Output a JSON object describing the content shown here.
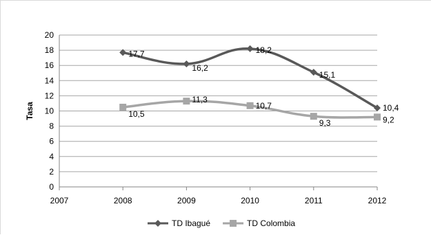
{
  "chart_data": {
    "type": "line",
    "x": [
      2007,
      2008,
      2009,
      2010,
      2011,
      2012
    ],
    "xlim": [
      2007,
      2012
    ],
    "ylim": [
      0,
      20
    ],
    "yticks": [
      0,
      2,
      4,
      6,
      8,
      10,
      12,
      14,
      16,
      18,
      20
    ],
    "ylabel": "Tasa",
    "xlabel": "",
    "grid": true,
    "legend_position": "bottom",
    "series": [
      {
        "name": "TD Ibagué",
        "color": "#595959",
        "marker": "diamond",
        "x": [
          2008,
          2009,
          2010,
          2011,
          2012
        ],
        "values": [
          17.7,
          16.2,
          18.2,
          15.1,
          10.4
        ],
        "labels": [
          "17,7",
          "16,2",
          "18,2",
          "15,1",
          "10,4"
        ]
      },
      {
        "name": "TD Colombia",
        "color": "#a6a6a6",
        "marker": "square",
        "x": [
          2008,
          2009,
          2010,
          2011,
          2012
        ],
        "values": [
          10.5,
          11.3,
          10.7,
          9.3,
          9.2
        ],
        "labels": [
          "10,5",
          "11,3",
          "10,7",
          "9,3",
          "9,2"
        ]
      }
    ]
  }
}
